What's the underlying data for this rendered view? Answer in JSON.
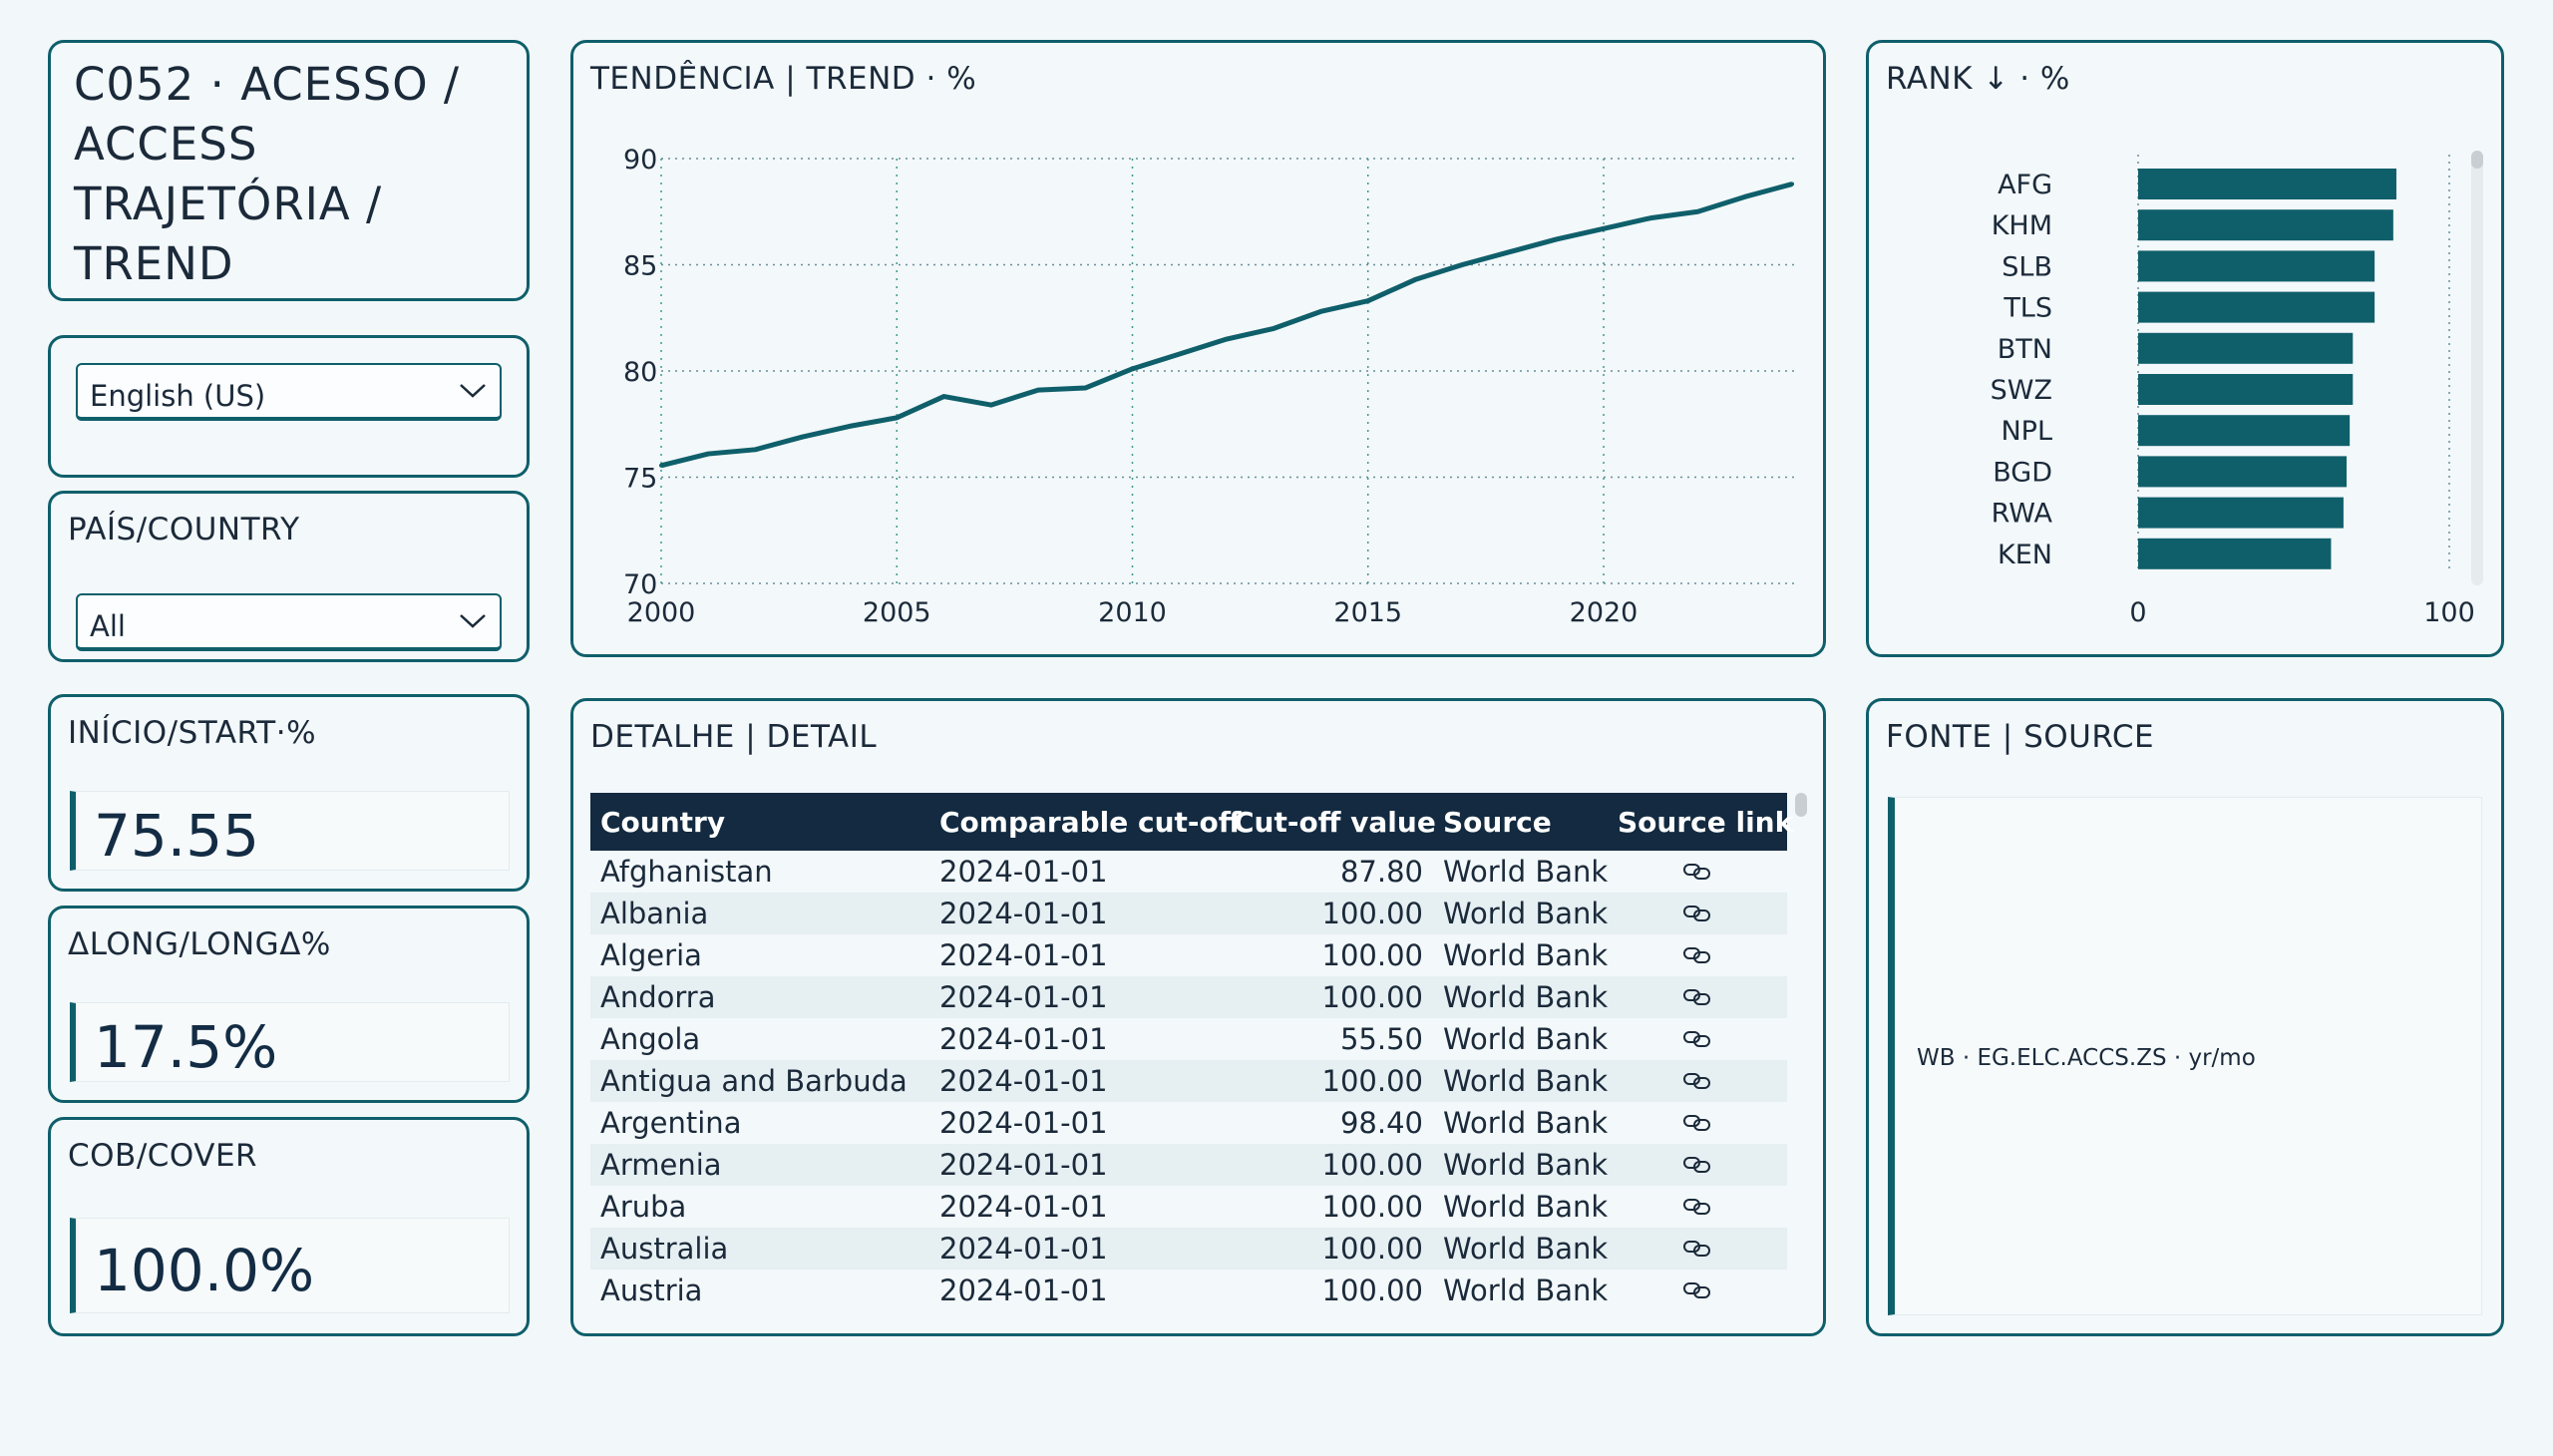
{
  "title_card": {
    "title": "C052 · ACESSO / ACCESS TRAJETÓRIA / TREND"
  },
  "language": {
    "selected": "English (US)"
  },
  "country_filter": {
    "label": "PAÍS/COUNTRY",
    "selected": "All"
  },
  "kpis": {
    "start": {
      "label": "INÍCIO/START·%",
      "value": "75.55"
    },
    "long": {
      "label": "ΔLONG/LONGΔ%",
      "value": "17.5%"
    },
    "cover": {
      "label": "COB/COVER",
      "value": "100.0%"
    }
  },
  "trend": {
    "title": "TENDÊNCIA | TREND · %"
  },
  "rank": {
    "title": "RANK ↓ · %"
  },
  "detail": {
    "title": "DETALHE | DETAIL",
    "columns": [
      "Country",
      "Comparable cut-off",
      "Cut-off value",
      "Source",
      "Source link"
    ],
    "rows": [
      [
        "Afghanistan",
        "2024-01-01",
        "87.80",
        "World Bank"
      ],
      [
        "Albania",
        "2024-01-01",
        "100.00",
        "World Bank"
      ],
      [
        "Algeria",
        "2024-01-01",
        "100.00",
        "World Bank"
      ],
      [
        "Andorra",
        "2024-01-01",
        "100.00",
        "World Bank"
      ],
      [
        "Angola",
        "2024-01-01",
        "55.50",
        "World Bank"
      ],
      [
        "Antigua and Barbuda",
        "2024-01-01",
        "100.00",
        "World Bank"
      ],
      [
        "Argentina",
        "2024-01-01",
        "98.40",
        "World Bank"
      ],
      [
        "Armenia",
        "2024-01-01",
        "100.00",
        "World Bank"
      ],
      [
        "Aruba",
        "2024-01-01",
        "100.00",
        "World Bank"
      ],
      [
        "Australia",
        "2024-01-01",
        "100.00",
        "World Bank"
      ],
      [
        "Austria",
        "2024-01-01",
        "100.00",
        "World Bank"
      ]
    ]
  },
  "source": {
    "title": "FONTE | SOURCE",
    "text": "WB · EG.ELC.ACCS.ZS · yr/mo"
  },
  "colors": {
    "accent": "#0f5f6b",
    "header_bg": "#132a40",
    "bar": "#0f5f6b"
  },
  "chart_data": [
    {
      "type": "line",
      "x": [
        2000,
        2001,
        2002,
        2003,
        2004,
        2005,
        2006,
        2007,
        2008,
        2009,
        2010,
        2011,
        2012,
        2013,
        2014,
        2015,
        2016,
        2017,
        2018,
        2019,
        2020,
        2021,
        2022,
        2023,
        2024
      ],
      "series": [
        {
          "values": [
            75.55,
            76.1,
            76.3,
            76.9,
            77.4,
            77.8,
            78.8,
            78.4,
            79.1,
            79.2,
            80.1,
            80.8,
            81.5,
            82.0,
            82.8,
            83.3,
            84.3,
            85.0,
            85.6,
            86.2,
            86.7,
            87.2,
            87.5,
            88.2,
            88.8
          ]
        }
      ],
      "xticks": [
        2000,
        2005,
        2010,
        2015,
        2020
      ],
      "yticks": [
        70,
        75,
        80,
        85,
        90
      ],
      "xlim": [
        2000,
        2024
      ],
      "ylim": [
        70,
        90
      ],
      "grid": true
    },
    {
      "type": "bar",
      "orientation": "horizontal",
      "categories": [
        "AFG",
        "KHM",
        "SLB",
        "TLS",
        "BTN",
        "SWZ",
        "NPL",
        "BGD",
        "RWA",
        "KEN"
      ],
      "values": [
        83,
        82,
        76,
        76,
        69,
        69,
        68,
        67,
        66,
        62
      ],
      "xticks": [
        0,
        100
      ],
      "xlim": [
        0,
        100
      ]
    }
  ]
}
